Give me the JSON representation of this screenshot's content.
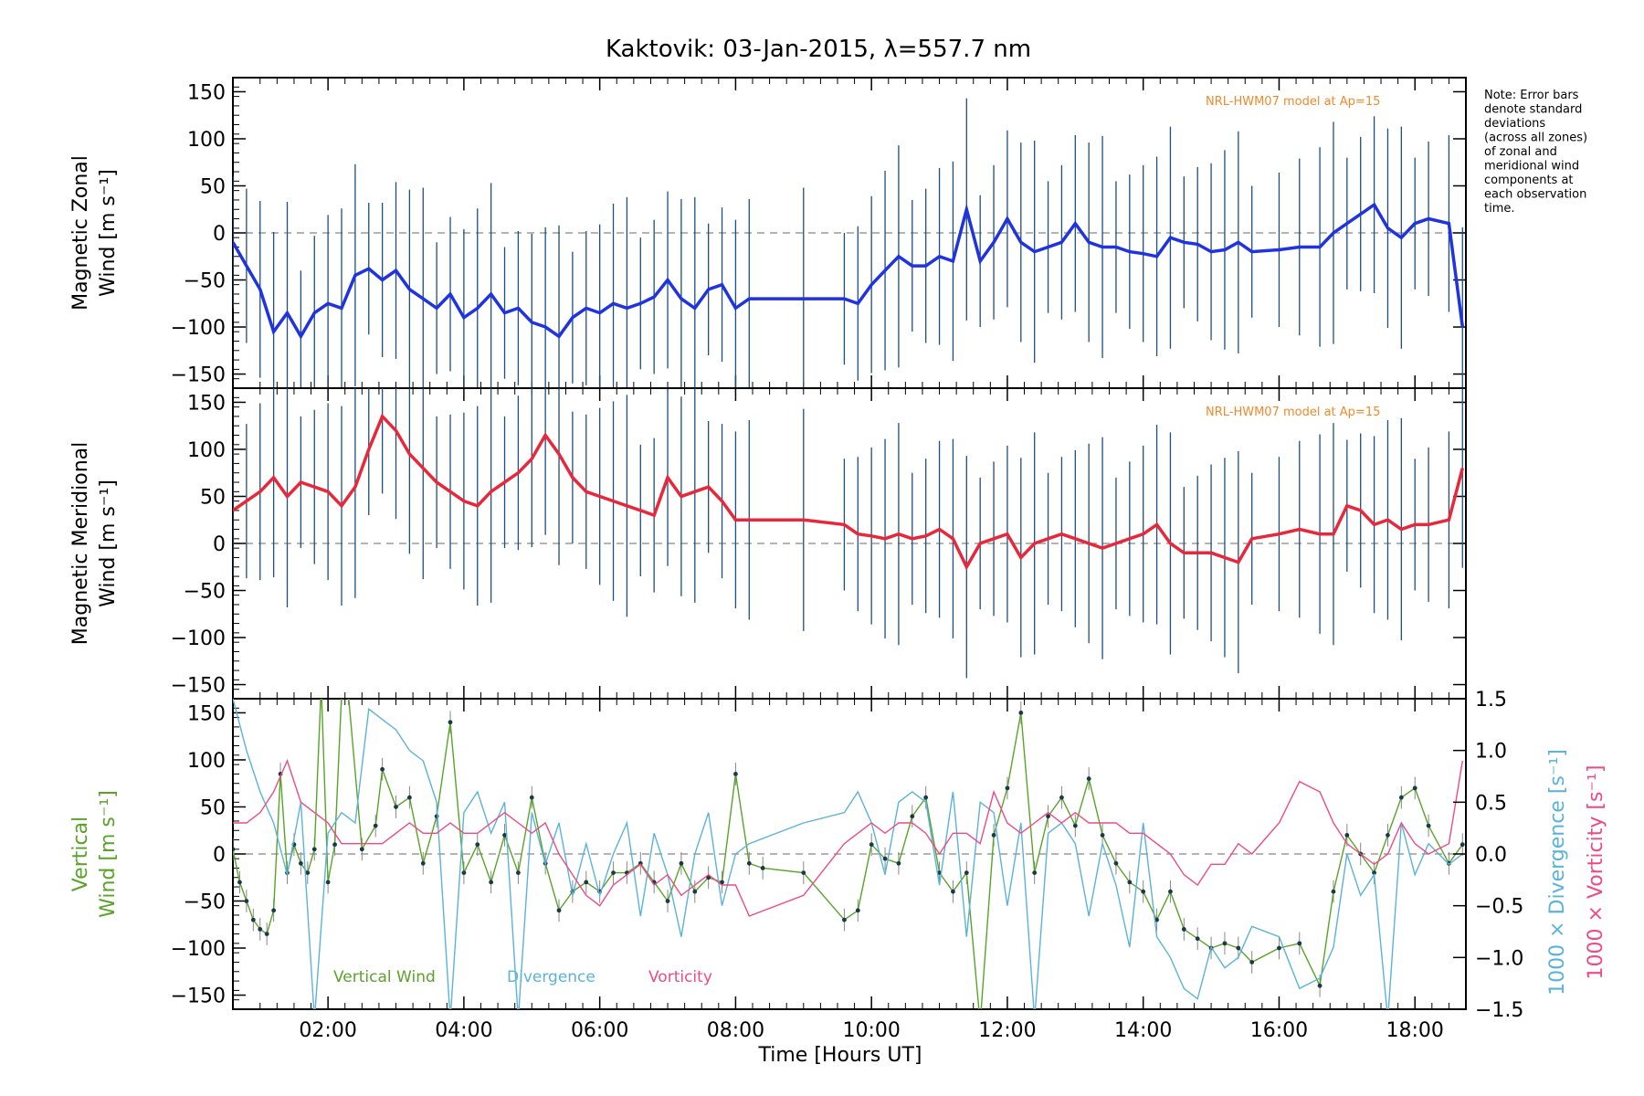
{
  "chart_data": {
    "title": "Kaktovik: 03-Jan-2015, λ=557.7 nm",
    "type": "line",
    "xlabel": "Time [Hours UT]",
    "xlim": [
      0.6,
      18.75
    ],
    "xticks": [
      "02:00",
      "04:00",
      "06:00",
      "08:00",
      "10:00",
      "12:00",
      "14:00",
      "16:00",
      "18:00"
    ],
    "xtick_values": [
      2,
      4,
      6,
      8,
      10,
      12,
      14,
      16,
      18
    ],
    "note": [
      "Note: Error bars",
      "denote standard",
      "deviations",
      "(across all zones)",
      "of zonal and",
      "meridional wind",
      "components at",
      "each observation",
      "time."
    ],
    "model_label": "NRL-HWM07 model at Ap=15",
    "panels": [
      {
        "id": "zonal",
        "ylabel_lines": [
          "Magnetic Zonal",
          "Wind [m s⁻¹]"
        ],
        "ylim": [
          -165,
          165
        ],
        "yticks": [
          -150,
          -100,
          -50,
          0,
          50,
          100,
          150
        ],
        "series": [
          {
            "color": "#1f33e0",
            "x": [
              0.6,
              0.8,
              1.0,
              1.2,
              1.4,
              1.6,
              1.8,
              2.0,
              2.2,
              2.4,
              2.6,
              2.8,
              3.0,
              3.2,
              3.4,
              3.6,
              3.8,
              4.0,
              4.2,
              4.4,
              4.6,
              4.8,
              5.0,
              5.2,
              5.4,
              5.6,
              5.8,
              6.0,
              6.2,
              6.4,
              6.6,
              6.8,
              7.0,
              7.2,
              7.4,
              7.6,
              7.8,
              8.0,
              8.2,
              9.0,
              9.6,
              9.8,
              10.0,
              10.2,
              10.4,
              10.6,
              10.8,
              11.0,
              11.2,
              11.4,
              11.6,
              11.8,
              12.0,
              12.2,
              12.4,
              12.6,
              12.8,
              13.0,
              13.2,
              13.4,
              13.6,
              13.8,
              14.0,
              14.2,
              14.4,
              14.6,
              14.8,
              15.0,
              15.2,
              15.4,
              15.6,
              16.0,
              16.3,
              16.6,
              16.8,
              17.0,
              17.2,
              17.4,
              17.6,
              17.8,
              18.0,
              18.2,
              18.5,
              18.7
            ],
            "y": [
              -10,
              -35,
              -60,
              -105,
              -85,
              -110,
              -85,
              -75,
              -80,
              -45,
              -38,
              -50,
              -40,
              -60,
              -70,
              -80,
              -65,
              -90,
              -80,
              -65,
              -85,
              -80,
              -95,
              -100,
              -110,
              -90,
              -80,
              -85,
              -75,
              -80,
              -75,
              -68,
              -50,
              -70,
              -80,
              -60,
              -55,
              -80,
              -70,
              -70,
              -70,
              -75,
              -55,
              -40,
              -25,
              -35,
              -35,
              -25,
              -30,
              25,
              -30,
              -10,
              15,
              -10,
              -20,
              -15,
              -10,
              10,
              -10,
              -15,
              -15,
              -20,
              -22,
              -25,
              -5,
              -10,
              -12,
              -20,
              -18,
              -10,
              -20,
              -18,
              -15,
              -15,
              0,
              10,
              20,
              30,
              5,
              -5,
              10,
              15,
              10,
              -100
            ]
          }
        ]
      },
      {
        "id": "meridional",
        "ylabel_lines": [
          "Magnetic Meridional",
          "Wind [m s⁻¹]"
        ],
        "ylim": [
          -165,
          165
        ],
        "yticks": [
          -150,
          -100,
          -50,
          0,
          50,
          100,
          150
        ],
        "series": [
          {
            "color": "#e8283a",
            "x": [
              0.6,
              0.8,
              1.0,
              1.2,
              1.4,
              1.6,
              1.8,
              2.0,
              2.2,
              2.4,
              2.6,
              2.8,
              3.0,
              3.2,
              3.4,
              3.6,
              3.8,
              4.0,
              4.2,
              4.4,
              4.6,
              4.8,
              5.0,
              5.2,
              5.4,
              5.6,
              5.8,
              6.0,
              6.2,
              6.4,
              6.6,
              6.8,
              7.0,
              7.2,
              7.4,
              7.6,
              7.8,
              8.0,
              8.2,
              9.0,
              9.6,
              9.8,
              10.0,
              10.2,
              10.4,
              10.6,
              10.8,
              11.0,
              11.2,
              11.4,
              11.6,
              11.8,
              12.0,
              12.2,
              12.4,
              12.6,
              12.8,
              13.0,
              13.2,
              13.4,
              13.6,
              13.8,
              14.0,
              14.2,
              14.4,
              14.6,
              14.8,
              15.0,
              15.2,
              15.4,
              15.6,
              16.0,
              16.3,
              16.6,
              16.8,
              17.0,
              17.2,
              17.4,
              17.6,
              17.8,
              18.0,
              18.2,
              18.5,
              18.7
            ],
            "y": [
              35,
              45,
              55,
              70,
              50,
              65,
              60,
              55,
              40,
              60,
              100,
              135,
              120,
              95,
              80,
              65,
              55,
              45,
              40,
              55,
              65,
              75,
              90,
              115,
              95,
              70,
              55,
              50,
              45,
              40,
              35,
              30,
              70,
              50,
              55,
              60,
              45,
              25,
              25,
              25,
              20,
              10,
              8,
              5,
              10,
              5,
              8,
              15,
              5,
              -25,
              0,
              5,
              10,
              -15,
              0,
              5,
              10,
              5,
              0,
              -5,
              0,
              5,
              10,
              20,
              0,
              -10,
              -10,
              -10,
              -15,
              -20,
              5,
              10,
              15,
              10,
              10,
              40,
              35,
              20,
              25,
              15,
              20,
              20,
              25,
              80
            ]
          }
        ]
      },
      {
        "id": "vertical",
        "ylabel_left": [
          "Vertical",
          "Wind [m s⁻¹]"
        ],
        "ylabel_right": [
          "1000 × Divergence [s⁻¹]",
          "1000 × Vorticity [s⁻¹]"
        ],
        "ylim": [
          -165,
          165
        ],
        "yticks": [
          -150,
          -100,
          -50,
          0,
          50,
          100,
          150
        ],
        "y2lim": [
          -1.5,
          1.5
        ],
        "y2ticks": [
          "-1.5",
          "-1.0",
          "-0.5",
          "0.0",
          "0.5",
          "1.0",
          "1.5"
        ],
        "y2tick_values": [
          -1.5,
          -1.0,
          -0.5,
          0.0,
          0.5,
          1.0,
          1.5
        ],
        "legend": [
          "Vertical Wind",
          "Divergence",
          "Vorticity"
        ],
        "series": [
          {
            "name": "Vertical Wind",
            "color": "#5aa32a",
            "axis": "left",
            "x": [
              0.6,
              0.7,
              0.8,
              0.9,
              1.0,
              1.1,
              1.2,
              1.3,
              1.4,
              1.5,
              1.6,
              1.7,
              1.8,
              1.9,
              2.0,
              2.1,
              2.2,
              2.3,
              2.5,
              2.7,
              2.8,
              3.0,
              3.2,
              3.4,
              3.6,
              3.8,
              4.0,
              4.2,
              4.4,
              4.6,
              4.8,
              5.0,
              5.2,
              5.4,
              5.6,
              5.8,
              6.0,
              6.2,
              6.4,
              6.6,
              6.8,
              7.0,
              7.2,
              7.4,
              7.6,
              7.8,
              8.0,
              8.2,
              8.4,
              9.0,
              9.6,
              9.8,
              10.0,
              10.2,
              10.4,
              10.6,
              10.8,
              11.0,
              11.2,
              11.4,
              11.6,
              11.8,
              12.0,
              12.2,
              12.4,
              12.6,
              12.8,
              13.0,
              13.2,
              13.4,
              13.6,
              13.8,
              14.0,
              14.2,
              14.4,
              14.6,
              14.8,
              15.0,
              15.2,
              15.4,
              15.6,
              16.0,
              16.3,
              16.6,
              16.8,
              17.0,
              17.2,
              17.4,
              17.6,
              17.8,
              18.0,
              18.2,
              18.5,
              18.7
            ],
            "y": [
              5,
              -30,
              -50,
              -70,
              -80,
              -85,
              -60,
              85,
              -20,
              10,
              -10,
              -20,
              5,
              180,
              -30,
              10,
              170,
              170,
              5,
              30,
              90,
              50,
              60,
              -10,
              40,
              140,
              -20,
              10,
              -30,
              20,
              -20,
              60,
              -10,
              -60,
              -40,
              -30,
              -40,
              -20,
              -20,
              -10,
              -30,
              -50,
              -10,
              -40,
              -25,
              -30,
              85,
              -10,
              -15,
              -20,
              -70,
              -60,
              10,
              -5,
              -10,
              40,
              60,
              -20,
              -40,
              -20,
              -180,
              20,
              70,
              150,
              -20,
              40,
              60,
              30,
              80,
              20,
              -10,
              -30,
              -40,
              -70,
              -40,
              -80,
              -90,
              -100,
              -95,
              -100,
              -115,
              -100,
              -95,
              -140,
              -40,
              20,
              0,
              -20,
              20,
              60,
              70,
              30,
              -10,
              10
            ]
          },
          {
            "name": "Divergence",
            "color": "#5bb3d8",
            "axis": "right",
            "x": [
              0.6,
              0.8,
              1.0,
              1.2,
              1.4,
              1.6,
              1.8,
              2.0,
              2.2,
              2.4,
              2.6,
              2.8,
              3.0,
              3.2,
              3.4,
              3.6,
              3.8,
              4.0,
              4.2,
              4.4,
              4.6,
              4.8,
              5.0,
              5.2,
              5.4,
              5.6,
              5.8,
              6.0,
              6.2,
              6.4,
              6.6,
              6.8,
              7.0,
              7.2,
              7.4,
              7.6,
              7.8,
              8.0,
              8.2,
              9.0,
              9.6,
              9.8,
              10.0,
              10.2,
              10.4,
              10.6,
              10.8,
              11.0,
              11.2,
              11.4,
              11.6,
              11.8,
              12.0,
              12.2,
              12.4,
              12.6,
              12.8,
              13.0,
              13.2,
              13.4,
              13.6,
              13.8,
              14.0,
              14.2,
              14.4,
              14.6,
              14.8,
              15.0,
              15.2,
              15.4,
              15.6,
              16.0,
              16.3,
              16.6,
              16.8,
              17.0,
              17.2,
              17.4,
              17.6,
              17.8,
              18.0,
              18.2,
              18.5,
              18.7
            ],
            "y": [
              1.5,
              1.0,
              0.6,
              0.3,
              -0.2,
              0.5,
              -1.6,
              0.2,
              0.4,
              0.3,
              1.4,
              1.3,
              1.2,
              1.0,
              0.9,
              0.5,
              -1.6,
              0.4,
              0.6,
              0.2,
              0.5,
              -1.6,
              0.4,
              -0.1,
              0.3,
              -0.4,
              0.1,
              -0.4,
              0.0,
              0.3,
              -0.6,
              0.2,
              -0.2,
              -0.8,
              0.0,
              0.4,
              -0.5,
              0.0,
              0.1,
              0.3,
              0.4,
              0.6,
              0.3,
              -0.2,
              0.5,
              0.6,
              0.5,
              -0.3,
              0.6,
              -0.8,
              0.5,
              0.4,
              -0.5,
              0.3,
              -1.6,
              0.2,
              0.3,
              0.1,
              -0.6,
              0.1,
              -0.3,
              -0.9,
              0.3,
              -0.8,
              -1.0,
              -1.3,
              -1.4,
              -0.9,
              -1.1,
              -1.0,
              -0.7,
              -0.8,
              -1.3,
              -1.2,
              -0.9,
              0.0,
              -0.4,
              -0.2,
              -1.6,
              0.3,
              -0.2,
              0.1,
              -0.1,
              0.0
            ]
          },
          {
            "name": "Vorticity",
            "color": "#ee4a86",
            "axis": "right",
            "x": [
              0.6,
              0.8,
              1.0,
              1.2,
              1.4,
              1.6,
              1.8,
              2.0,
              2.2,
              2.4,
              2.6,
              2.8,
              3.0,
              3.2,
              3.4,
              3.6,
              3.8,
              4.0,
              4.2,
              4.4,
              4.6,
              4.8,
              5.0,
              5.2,
              5.4,
              5.6,
              5.8,
              6.0,
              6.2,
              6.4,
              6.6,
              6.8,
              7.0,
              7.2,
              7.4,
              7.6,
              7.8,
              8.0,
              8.2,
              9.0,
              9.6,
              9.8,
              10.0,
              10.2,
              10.4,
              10.6,
              10.8,
              11.0,
              11.2,
              11.4,
              11.6,
              11.8,
              12.0,
              12.2,
              12.4,
              12.6,
              12.8,
              13.0,
              13.2,
              13.4,
              13.6,
              13.8,
              14.0,
              14.2,
              14.4,
              14.6,
              14.8,
              15.0,
              15.2,
              15.4,
              15.6,
              16.0,
              16.3,
              16.6,
              16.8,
              17.0,
              17.2,
              17.4,
              17.6,
              17.8,
              18.0,
              18.2,
              18.5,
              18.7
            ],
            "y": [
              0.3,
              0.3,
              0.4,
              0.6,
              0.9,
              0.5,
              0.4,
              0.3,
              0.1,
              0.1,
              0.1,
              0.1,
              0.2,
              0.3,
              0.2,
              0.2,
              0.3,
              0.2,
              0.2,
              0.3,
              0.4,
              0.3,
              0.2,
              0.3,
              0.0,
              -0.2,
              -0.4,
              -0.5,
              -0.3,
              -0.2,
              -0.1,
              -0.3,
              -0.2,
              -0.4,
              -0.3,
              -0.2,
              -0.3,
              -0.3,
              -0.6,
              -0.4,
              0.1,
              0.2,
              0.3,
              0.2,
              0.3,
              0.3,
              0.2,
              0.0,
              0.2,
              0.2,
              0.1,
              0.6,
              0.3,
              0.2,
              0.3,
              0.4,
              0.3,
              0.4,
              0.3,
              0.3,
              0.3,
              0.2,
              0.2,
              0.1,
              0.0,
              -0.2,
              -0.3,
              -0.1,
              -0.1,
              0.1,
              0.0,
              0.3,
              0.7,
              0.6,
              0.3,
              0.1,
              0.0,
              -0.1,
              0.0,
              0.3,
              0.1,
              0.0,
              0.1,
              0.9
            ]
          }
        ]
      }
    ]
  }
}
